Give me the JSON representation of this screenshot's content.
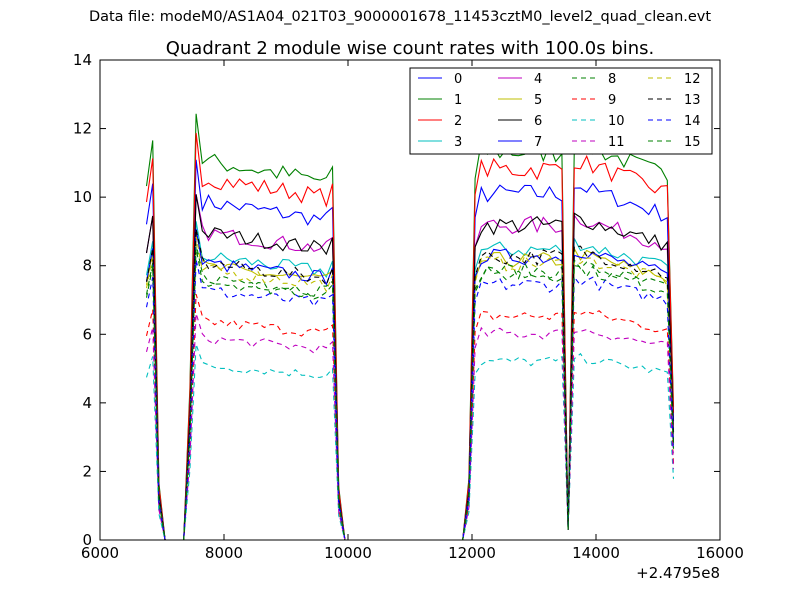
{
  "suptitle": "Data file: modeM0/AS1A04_021T03_9000001678_11453cztM0_level2_quad_clean.evt",
  "chart_data": {
    "type": "line",
    "title": "Quadrant 2 module wise count rates with 100.0s bins.",
    "xlabel": "",
    "ylabel": "",
    "x_offset_label": "+2.4795e8",
    "xlim": [
      6000,
      16000
    ],
    "ylim": [
      0,
      14
    ],
    "xticks": [
      "6000",
      "8000",
      "10000",
      "12000",
      "14000",
      "16000"
    ],
    "yticks": [
      "0",
      "2",
      "4",
      "6",
      "8",
      "10",
      "12",
      "14"
    ],
    "grid": false,
    "legend_position": "top-right",
    "legend_columns": 4,
    "series": [
      {
        "name": "0",
        "color": "#0000ff",
        "style": "solid",
        "level": 9.9
      },
      {
        "name": "1",
        "color": "#008000",
        "style": "solid",
        "level": 11.1
      },
      {
        "name": "2",
        "color": "#ff0000",
        "style": "solid",
        "level": 10.6
      },
      {
        "name": "3",
        "color": "#00bfbf",
        "style": "solid",
        "level": 8.3
      },
      {
        "name": "4",
        "color": "#bf00bf",
        "style": "solid",
        "level": 9.0
      },
      {
        "name": "5",
        "color": "#bfbf00",
        "style": "solid",
        "level": 8.0
      },
      {
        "name": "6",
        "color": "#000000",
        "style": "solid",
        "level": 9.0
      },
      {
        "name": "7",
        "color": "#0000ff",
        "style": "solid",
        "level": 8.1
      },
      {
        "name": "8",
        "color": "#008000",
        "style": "dashed",
        "level": 7.7
      },
      {
        "name": "9",
        "color": "#ff0000",
        "style": "dashed",
        "level": 6.4
      },
      {
        "name": "10",
        "color": "#00bfbf",
        "style": "dashed",
        "level": 5.1
      },
      {
        "name": "11",
        "color": "#bf00bf",
        "style": "dashed",
        "level": 5.9
      },
      {
        "name": "12",
        "color": "#bfbf00",
        "style": "dashed",
        "level": 7.9
      },
      {
        "name": "13",
        "color": "#000000",
        "style": "dashed",
        "level": 8.1
      },
      {
        "name": "14",
        "color": "#0000ff",
        "style": "dashed",
        "level": 7.3
      },
      {
        "name": "15",
        "color": "#008000",
        "style": "dashed",
        "level": 7.6
      }
    ],
    "segments": [
      {
        "x_start": 6750,
        "x_end": 7050,
        "kind": "short_peak"
      },
      {
        "x_start": 7050,
        "x_end": 7450,
        "kind": "zero"
      },
      {
        "x_start": 7450,
        "x_end": 9850,
        "kind": "plateau"
      },
      {
        "x_start": 9850,
        "x_end": 11950,
        "kind": "zero"
      },
      {
        "x_start": 11950,
        "x_end": 13500,
        "kind": "plateau"
      },
      {
        "x_start": 13500,
        "x_end": 13600,
        "kind": "dip"
      },
      {
        "x_start": 13600,
        "x_end": 15250,
        "kind": "plateau"
      }
    ]
  }
}
